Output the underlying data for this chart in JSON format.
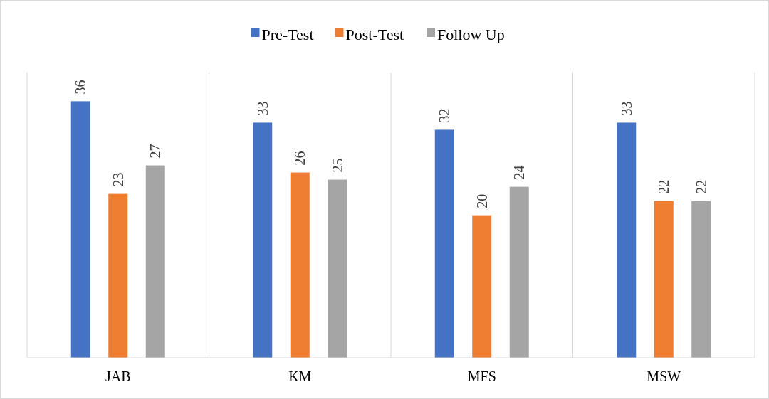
{
  "chart_data": {
    "type": "bar",
    "categories": [
      "JAB",
      "KM",
      "MFS",
      "MSW"
    ],
    "series": [
      {
        "name": "Pre-Test",
        "color": "#4472c4",
        "values": [
          36,
          33,
          32,
          33
        ]
      },
      {
        "name": "Post-Test",
        "color": "#ed7d31",
        "values": [
          23,
          26,
          20,
          22
        ]
      },
      {
        "name": "Follow Up",
        "color": "#a5a5a5",
        "values": [
          27,
          25,
          24,
          22
        ]
      }
    ],
    "data_labels": true,
    "legend": "top",
    "grid": "x",
    "tick_labels": "x"
  }
}
